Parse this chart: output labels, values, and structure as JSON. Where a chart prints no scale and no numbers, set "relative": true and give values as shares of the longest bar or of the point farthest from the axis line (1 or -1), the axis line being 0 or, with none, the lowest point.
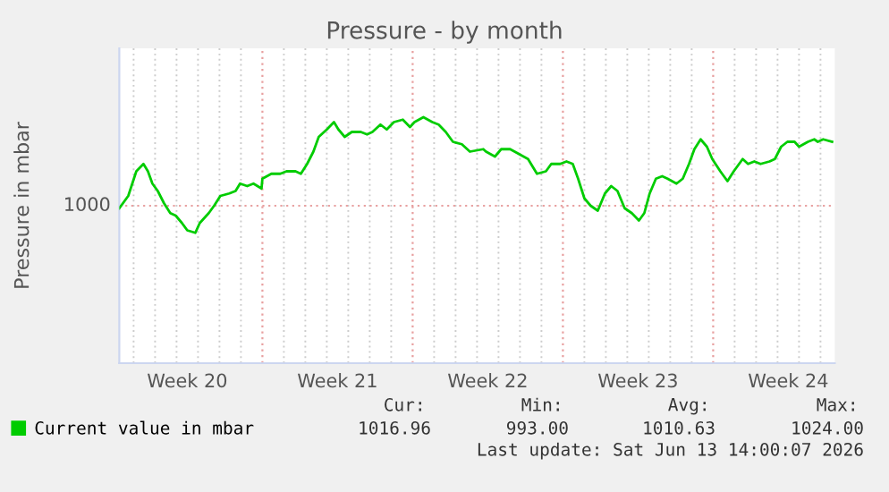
{
  "chart_data": {
    "type": "line",
    "title": "Pressure - by month",
    "ylabel": "Pressure in mbar",
    "relative": true,
    "x": [
      "2026-05-11T08:00",
      "2026-05-11T18:00",
      "2026-05-12T03:00",
      "2026-05-12T11:00",
      "2026-05-12T16:00",
      "2026-05-12T21:00",
      "2026-05-13T03:00",
      "2026-05-13T10:00",
      "2026-05-13T17:00",
      "2026-05-13T23:00",
      "2026-05-14T06:00",
      "2026-05-14T12:00",
      "2026-05-14T21:00",
      "2026-05-15T02:00",
      "2026-05-15T12:00",
      "2026-05-15T18:00",
      "2026-05-16T01:00",
      "2026-05-16T11:00",
      "2026-05-16T18:00",
      "2026-05-16T23:00",
      "2026-05-17T07:00",
      "2026-05-17T14:00",
      "2026-05-17T23:00",
      "2026-05-18T00:00",
      "2026-05-18T10:00",
      "2026-05-18T20:00",
      "2026-05-19T03:00",
      "2026-05-19T13:00",
      "2026-05-19T19:00",
      "2026-05-20T02:00",
      "2026-05-20T09:00",
      "2026-05-20T15:00",
      "2026-05-21T00:00",
      "2026-05-21T08:00",
      "2026-05-21T13:00",
      "2026-05-21T20:00",
      "2026-05-22T04:00",
      "2026-05-22T14:00",
      "2026-05-22T21:00",
      "2026-05-23T03:00",
      "2026-05-23T12:00",
      "2026-05-23T19:00",
      "2026-05-24T03:00",
      "2026-05-24T13:00",
      "2026-05-24T21:00",
      "2026-05-25T02:00",
      "2026-05-25T12:00",
      "2026-05-25T22:00",
      "2026-05-26T05:00",
      "2026-05-26T13:00",
      "2026-05-26T21:00",
      "2026-05-27T07:00",
      "2026-05-27T16:00",
      "2026-05-28T07:00",
      "2026-05-28T10:00",
      "2026-05-28T20:00",
      "2026-05-29T03:00",
      "2026-05-29T13:00",
      "2026-05-29T23:00",
      "2026-05-30T09:00",
      "2026-05-30T19:00",
      "2026-05-31T05:00",
      "2026-05-31T11:00",
      "2026-05-31T21:00",
      "2026-06-01T04:00",
      "2026-06-01T11:00",
      "2026-06-01T17:00",
      "2026-06-02T00:00",
      "2026-06-02T07:00",
      "2026-06-02T15:00",
      "2026-06-02T23:00",
      "2026-06-03T06:00",
      "2026-06-03T13:00",
      "2026-06-03T21:00",
      "2026-06-04T05:00",
      "2026-06-04T13:00",
      "2026-06-04T19:00",
      "2026-06-05T01:00",
      "2026-06-05T08:00",
      "2026-06-05T15:00",
      "2026-06-05T21:00",
      "2026-06-06T07:00",
      "2026-06-06T14:00",
      "2026-06-06T21:00",
      "2026-06-07T03:00",
      "2026-06-07T10:00",
      "2026-06-07T17:00",
      "2026-06-07T23:00",
      "2026-06-08T08:00",
      "2026-06-08T16:00",
      "2026-06-08T23:00",
      "2026-06-09T09:00",
      "2026-06-09T15:00",
      "2026-06-09T22:00",
      "2026-06-10T05:00",
      "2026-06-10T15:00",
      "2026-06-10T21:00",
      "2026-06-11T04:00",
      "2026-06-11T11:00",
      "2026-06-11T19:00",
      "2026-06-12T00:00",
      "2026-06-12T10:00",
      "2026-06-12T17:00",
      "2026-06-12T21:00",
      "2026-06-13T03:00",
      "2026-06-13T13:00"
    ],
    "series": [
      {
        "name": "Current value in mbar",
        "color": "#00cc00",
        "values": [
          0.63,
          0.68,
          0.78,
          0.81,
          0.78,
          0.73,
          0.7,
          0.65,
          0.61,
          0.6,
          0.57,
          0.54,
          0.53,
          0.57,
          0.61,
          0.64,
          0.68,
          0.69,
          0.7,
          0.73,
          0.72,
          0.73,
          0.71,
          0.75,
          0.77,
          0.77,
          0.78,
          0.78,
          0.77,
          0.81,
          0.86,
          0.92,
          0.95,
          0.98,
          0.95,
          0.92,
          0.94,
          0.94,
          0.93,
          0.94,
          0.97,
          0.95,
          0.98,
          0.99,
          0.96,
          0.98,
          1.0,
          0.98,
          0.97,
          0.94,
          0.9,
          0.89,
          0.86,
          0.87,
          0.86,
          0.84,
          0.87,
          0.87,
          0.85,
          0.83,
          0.77,
          0.78,
          0.81,
          0.81,
          0.82,
          0.81,
          0.75,
          0.67,
          0.64,
          0.62,
          0.69,
          0.72,
          0.7,
          0.63,
          0.61,
          0.58,
          0.61,
          0.69,
          0.75,
          0.76,
          0.75,
          0.73,
          0.75,
          0.81,
          0.87,
          0.91,
          0.88,
          0.83,
          0.78,
          0.74,
          0.78,
          0.83,
          0.81,
          0.82,
          0.81,
          0.82,
          0.83,
          0.88,
          0.9,
          0.9,
          0.88,
          0.9,
          0.91,
          0.9,
          0.91,
          0.9
        ]
      }
    ],
    "xlim": [
      "2026-05-11T08:00",
      "2026-06-13T16:00"
    ],
    "xticks": [
      {
        "value": "2026-05-14T12:00",
        "label": "Week 20"
      },
      {
        "value": "2026-05-21T12:00",
        "label": "Week 21"
      },
      {
        "value": "2026-05-28T12:00",
        "label": "Week 22"
      },
      {
        "value": "2026-06-04T12:00",
        "label": "Week 23"
      },
      {
        "value": "2026-06-11T12:00",
        "label": "Week 24"
      },
      {
        "value": "2026-05-12",
        "label": null
      },
      {
        "value": "2026-05-13",
        "label": null
      },
      {
        "value": "2026-05-14",
        "label": null
      },
      {
        "value": "2026-05-15",
        "label": null
      },
      {
        "value": "2026-05-16",
        "label": null
      },
      {
        "value": "2026-05-17",
        "label": null
      },
      {
        "value": "2026-05-19",
        "label": null
      },
      {
        "value": "2026-05-20",
        "label": null
      },
      {
        "value": "2026-05-21",
        "label": null
      },
      {
        "value": "2026-05-22",
        "label": null
      },
      {
        "value": "2026-05-23",
        "label": null
      },
      {
        "value": "2026-05-24",
        "label": null
      },
      {
        "value": "2026-05-26",
        "label": null
      },
      {
        "value": "2026-05-27",
        "label": null
      },
      {
        "value": "2026-05-28",
        "label": null
      },
      {
        "value": "2026-05-29",
        "label": null
      },
      {
        "value": "2026-05-30",
        "label": null
      },
      {
        "value": "2026-05-31",
        "label": null
      },
      {
        "value": "2026-06-02",
        "label": null
      },
      {
        "value": "2026-06-03",
        "label": null
      },
      {
        "value": "2026-06-04",
        "label": null
      },
      {
        "value": "2026-06-05",
        "label": null
      },
      {
        "value": "2026-06-06",
        "label": null
      },
      {
        "value": "2026-06-07",
        "label": null
      },
      {
        "value": "2026-06-09",
        "label": null
      },
      {
        "value": "2026-06-10",
        "label": null
      },
      {
        "value": "2026-06-11",
        "label": null
      },
      {
        "value": "2026-06-12",
        "label": null
      },
      {
        "value": "2026-06-13",
        "label": null
      }
    ],
    "ref_lines": [
      {
        "axis": "x",
        "value": "2026-05-18",
        "color": "#e8a0a0",
        "line_style": "dotted"
      },
      {
        "axis": "x",
        "value": "2026-05-25",
        "color": "#e8a0a0",
        "line_style": "dotted"
      },
      {
        "axis": "x",
        "value": "2026-06-01",
        "color": "#e8a0a0",
        "line_style": "dotted"
      },
      {
        "axis": "x",
        "value": "2026-06-08",
        "color": "#e8a0a0",
        "line_style": "dotted"
      },
      {
        "axis": "y",
        "value": 0.64,
        "color": "#e8a0a0",
        "line_style": "dotted"
      }
    ],
    "grid": "x",
    "legend": "bottom",
    "line_style": "solid",
    "marker": "none",
    "annotations": [
      "Cur:",
      "Min:",
      "Avg:",
      "Max:",
      "1016.96",
      "993.00",
      "1010.63",
      "1024.00",
      "Last update: Sat Jun 13 14:00:07 2026",
      "1000"
    ]
  }
}
